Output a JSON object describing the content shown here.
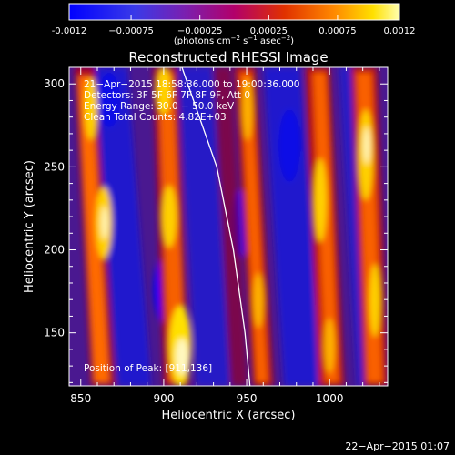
{
  "chart_data": {
    "type": "heatmap",
    "title": "Reconstructed RHESSI Image",
    "xlabel": "Heliocentric X (arcsec)",
    "ylabel": "Heliocentric Y (arcsec)",
    "xlim": [
      843,
      1035
    ],
    "ylim": [
      118,
      310
    ],
    "x_ticks": [
      850,
      900,
      950,
      1000
    ],
    "y_ticks": [
      150,
      200,
      250,
      300
    ],
    "grid": false,
    "colorbar": {
      "range": [
        -0.0012,
        0.0012
      ],
      "tick_values": [
        -0.0012,
        -0.00075,
        -0.00025,
        0.00025,
        0.00075,
        0.0012
      ],
      "tick_labels": [
        "-0.0012",
        "−0.00075",
        "−0.00025",
        "0.00025",
        "0.00075",
        "0.0012"
      ],
      "label_main": "(photons cm",
      "label_exp1": "−2",
      "label_mid1": " s",
      "label_exp2": "−1",
      "label_mid2": " asec",
      "label_exp3": "−2",
      "label_end": ")"
    },
    "annotations": [
      "21−Apr−2015 18:58:36.000 to 19:00:36.000",
      "Detectors: 3F 5F 6F 7F 8F 9F, Att 0",
      "Energy Range: 30.0 − 50.0 keV",
      "Clean     Total Counts: 4.82E+03"
    ],
    "peak_label": "Position of Peak: [911,136]",
    "limb_curve": [
      [
        911,
        310
      ],
      [
        932,
        250
      ],
      [
        942,
        200
      ],
      [
        949,
        150
      ],
      [
        952,
        118
      ]
    ]
  },
  "footer": {
    "timestamp": "22−Apr−2015 01:07"
  },
  "colors": {
    "background": "#000000",
    "text": "#ffffff",
    "colormap": [
      "#0000ff",
      "#3a3ae8",
      "#7a1fb0",
      "#b2006a",
      "#e03000",
      "#ff8800",
      "#ffe000",
      "#ffffb0"
    ]
  }
}
